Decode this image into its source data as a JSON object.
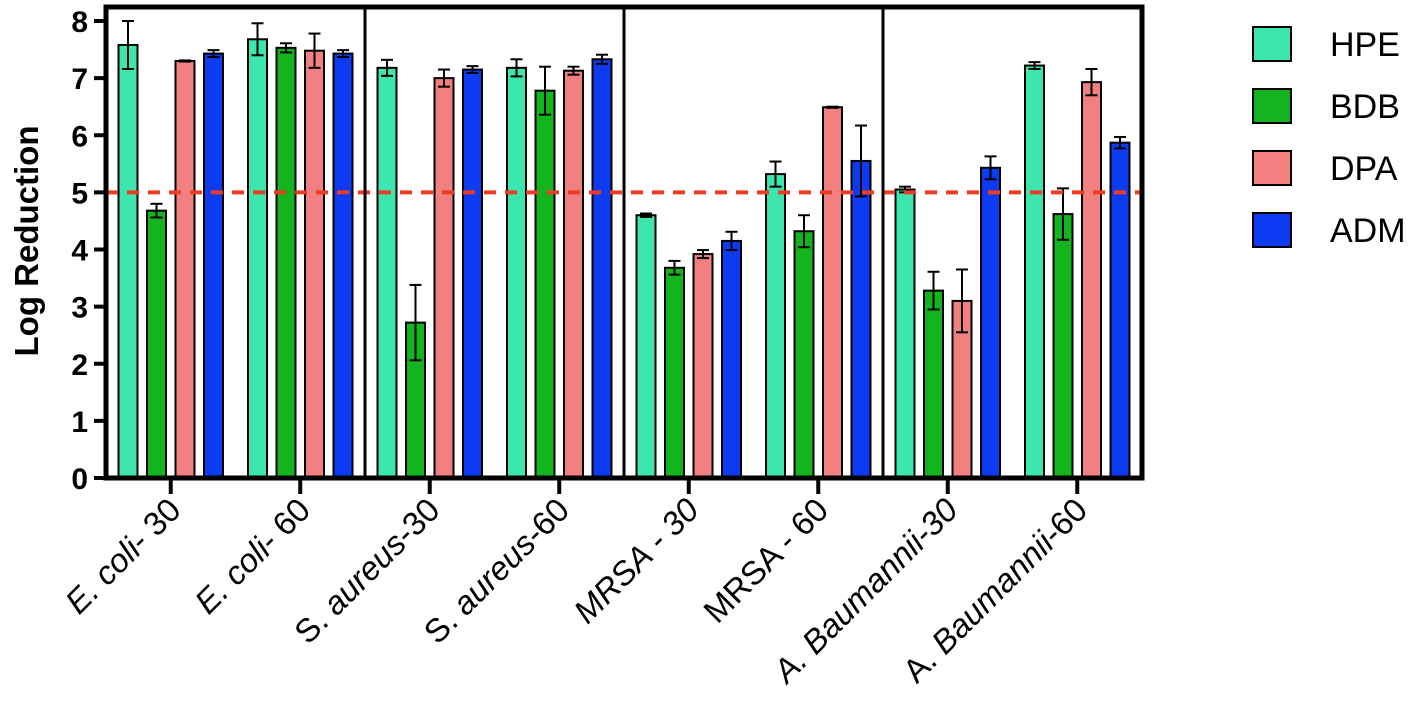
{
  "chart_data": {
    "type": "bar",
    "title": "",
    "xlabel": "",
    "ylabel": "Log Reduction",
    "ylim": [
      0,
      8
    ],
    "yticks": [
      "0",
      "1",
      "2",
      "3",
      "4",
      "5",
      "6",
      "7",
      "8"
    ],
    "reference_line": {
      "value": 5,
      "style": "dashed",
      "color": "#EE3B24"
    },
    "group_separators_after": [
      1,
      3,
      5
    ],
    "categories": [
      {
        "parts": [
          {
            "text": "E. coli",
            "italic": true
          },
          {
            "text": "- 30",
            "italic": false
          }
        ]
      },
      {
        "parts": [
          {
            "text": "E. coli",
            "italic": true
          },
          {
            "text": "- 60",
            "italic": false
          }
        ]
      },
      {
        "parts": [
          {
            "text": "S. ",
            "italic": false
          },
          {
            "text": "aureus",
            "italic": true
          },
          {
            "text": "-30",
            "italic": false
          }
        ]
      },
      {
        "parts": [
          {
            "text": "S. ",
            "italic": false
          },
          {
            "text": "aureus",
            "italic": true
          },
          {
            "text": "-60",
            "italic": false
          }
        ]
      },
      {
        "parts": [
          {
            "text": "MRSA - 30",
            "italic": true
          }
        ]
      },
      {
        "parts": [
          {
            "text": "MRSA - 60",
            "italic": false
          }
        ]
      },
      {
        "parts": [
          {
            "text": "A. Baumannii-30",
            "italic": true
          }
        ]
      },
      {
        "parts": [
          {
            "text": "A. ",
            "italic": false
          },
          {
            "text": "Baumannii",
            "italic": true
          },
          {
            "text": "-60",
            "italic": false
          }
        ]
      }
    ],
    "series": [
      {
        "name": "HPE",
        "color": "#3EE6AF",
        "values": [
          7.58,
          7.68,
          7.18,
          7.18,
          4.6,
          5.32,
          5.05,
          7.22
        ],
        "errors": [
          0.42,
          0.28,
          0.14,
          0.15,
          0.03,
          0.22,
          0.05,
          0.06
        ]
      },
      {
        "name": "BDB",
        "color": "#14B41E",
        "values": [
          4.68,
          7.53,
          2.72,
          6.78,
          3.68,
          4.32,
          3.28,
          4.62
        ],
        "errors": [
          0.12,
          0.08,
          0.66,
          0.42,
          0.12,
          0.28,
          0.33,
          0.45
        ]
      },
      {
        "name": "DPA",
        "color": "#F28080",
        "values": [
          7.3,
          7.48,
          7.0,
          7.13,
          3.92,
          6.49,
          3.1,
          6.93
        ],
        "errors": [
          0.01,
          0.3,
          0.15,
          0.07,
          0.07,
          0.01,
          0.55,
          0.23
        ]
      },
      {
        "name": "ADM",
        "color": "#0D3BF2",
        "values": [
          7.43,
          7.43,
          7.15,
          7.33,
          4.15,
          5.55,
          5.43,
          5.87
        ],
        "errors": [
          0.06,
          0.06,
          0.06,
          0.08,
          0.16,
          0.62,
          0.2,
          0.1
        ]
      }
    ],
    "legend_position": "right"
  }
}
